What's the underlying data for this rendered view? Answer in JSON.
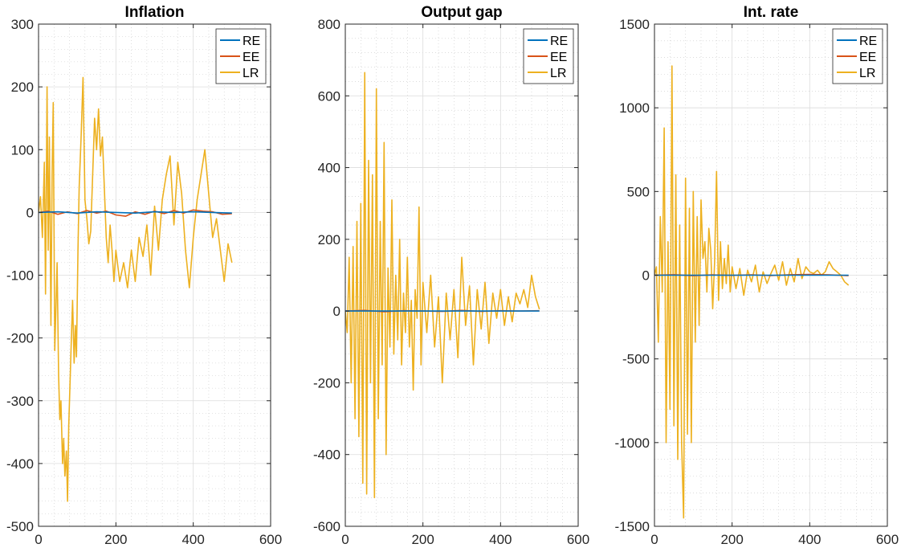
{
  "colors": {
    "RE": "#0072BD",
    "EE": "#D95319",
    "LR": "#EDB120",
    "grid_major": "#dcdcdc",
    "grid_minor": "#c8c8c8",
    "axes": "#262626"
  },
  "chart_data": [
    {
      "type": "line",
      "title": "Inflation",
      "xlim": [
        0,
        600
      ],
      "ylim": [
        -500,
        300
      ],
      "xticks": [
        0,
        200,
        400,
        600
      ],
      "yticks": [
        -500,
        -400,
        -300,
        -200,
        -100,
        0,
        100,
        200,
        300
      ],
      "grid": true,
      "minor_grid": true,
      "legend": "top-right",
      "series": [
        {
          "name": "RE",
          "color": "#0072BD",
          "x": [
            0,
            50,
            100,
            150,
            200,
            250,
            300,
            350,
            400,
            450,
            500
          ],
          "y": [
            0,
            1,
            -1,
            1,
            0,
            -1,
            1,
            0,
            1,
            0,
            -1
          ]
        },
        {
          "name": "EE",
          "color": "#D95319",
          "x": [
            0,
            25,
            50,
            75,
            100,
            125,
            150,
            175,
            200,
            225,
            250,
            275,
            300,
            325,
            350,
            375,
            400,
            425,
            450,
            475,
            500
          ],
          "y": [
            0,
            2,
            -3,
            1,
            -2,
            3,
            -1,
            2,
            -4,
            -6,
            1,
            -3,
            2,
            -2,
            3,
            -1,
            4,
            2,
            1,
            -3,
            -2
          ]
        },
        {
          "name": "LR",
          "color": "#EDB120",
          "x": [
            0,
            5,
            10,
            15,
            18,
            22,
            25,
            28,
            32,
            35,
            38,
            42,
            45,
            48,
            52,
            55,
            58,
            62,
            65,
            68,
            72,
            75,
            78,
            82,
            85,
            88,
            92,
            95,
            98,
            102,
            105,
            110,
            115,
            120,
            125,
            130,
            135,
            140,
            145,
            150,
            155,
            160,
            165,
            170,
            175,
            180,
            185,
            190,
            195,
            200,
            210,
            220,
            230,
            240,
            250,
            260,
            270,
            280,
            290,
            300,
            310,
            320,
            330,
            340,
            350,
            360,
            370,
            380,
            390,
            400,
            410,
            420,
            430,
            440,
            450,
            460,
            470,
            480,
            490,
            500
          ],
          "y": [
            0,
            25,
            -40,
            80,
            -130,
            200,
            -60,
            120,
            -180,
            60,
            175,
            -220,
            -150,
            -80,
            -260,
            -330,
            -300,
            -400,
            -360,
            -420,
            -380,
            -460,
            -340,
            -260,
            -200,
            -140,
            -240,
            -180,
            -230,
            -60,
            40,
            120,
            215,
            20,
            -10,
            -50,
            -30,
            60,
            150,
            100,
            165,
            90,
            120,
            40,
            -40,
            -80,
            -20,
            -60,
            -110,
            -60,
            -110,
            -80,
            -120,
            -60,
            -110,
            -40,
            -70,
            -20,
            -100,
            10,
            -60,
            20,
            60,
            90,
            -20,
            80,
            30,
            -60,
            -120,
            -40,
            20,
            60,
            100,
            30,
            -40,
            -10,
            -60,
            -110,
            -50,
            -80
          ]
        }
      ]
    },
    {
      "type": "line",
      "title": "Output gap",
      "xlim": [
        0,
        600
      ],
      "ylim": [
        -600,
        800
      ],
      "xticks": [
        0,
        200,
        400,
        600
      ],
      "yticks": [
        -600,
        -400,
        -200,
        0,
        200,
        400,
        600,
        800
      ],
      "grid": true,
      "minor_grid": true,
      "legend": "top-right",
      "series": [
        {
          "name": "RE",
          "color": "#0072BD",
          "x": [
            0,
            100,
            200,
            300,
            400,
            500
          ],
          "y": [
            0,
            0,
            0,
            0,
            0,
            0
          ]
        },
        {
          "name": "EE",
          "color": "#D95319",
          "x": [
            0,
            50,
            100,
            150,
            200,
            250,
            300,
            350,
            400,
            450,
            500
          ],
          "y": [
            0,
            2,
            -2,
            1,
            0,
            -1,
            2,
            -1,
            1,
            0,
            1
          ]
        },
        {
          "name": "LR",
          "color": "#EDB120",
          "x": [
            0,
            5,
            10,
            15,
            20,
            25,
            30,
            35,
            40,
            45,
            50,
            55,
            60,
            65,
            70,
            75,
            80,
            85,
            90,
            95,
            100,
            105,
            110,
            115,
            120,
            125,
            130,
            135,
            140,
            145,
            150,
            155,
            160,
            165,
            170,
            175,
            180,
            185,
            190,
            195,
            200,
            210,
            220,
            230,
            240,
            250,
            260,
            270,
            280,
            290,
            300,
            310,
            320,
            330,
            340,
            350,
            360,
            370,
            380,
            390,
            400,
            410,
            420,
            430,
            440,
            450,
            460,
            470,
            480,
            490,
            500
          ],
          "y": [
            0,
            -60,
            150,
            -200,
            180,
            -300,
            250,
            -350,
            300,
            -480,
            665,
            -510,
            420,
            -200,
            380,
            -520,
            620,
            -300,
            250,
            -150,
            470,
            -400,
            120,
            -100,
            310,
            -120,
            100,
            -80,
            200,
            -150,
            50,
            -60,
            150,
            -100,
            30,
            -220,
            60,
            -20,
            290,
            -150,
            80,
            -60,
            100,
            -100,
            40,
            -200,
            50,
            -80,
            60,
            -130,
            150,
            -40,
            70,
            -150,
            60,
            -50,
            80,
            -90,
            50,
            -20,
            60,
            -40,
            40,
            -30,
            50,
            20,
            60,
            10,
            100,
            40,
            5
          ]
        }
      ]
    },
    {
      "type": "line",
      "title": "Int. rate",
      "xlim": [
        0,
        600
      ],
      "ylim": [
        -1500,
        1500
      ],
      "xticks": [
        0,
        200,
        400,
        600
      ],
      "yticks": [
        -1500,
        -1000,
        -500,
        0,
        500,
        1000,
        1500
      ],
      "grid": true,
      "minor_grid": true,
      "legend": "top-right",
      "series": [
        {
          "name": "RE",
          "color": "#0072BD",
          "x": [
            0,
            100,
            200,
            300,
            400,
            500
          ],
          "y": [
            0,
            0,
            0,
            0,
            0,
            0
          ]
        },
        {
          "name": "EE",
          "color": "#D95319",
          "x": [
            0,
            50,
            100,
            150,
            200,
            250,
            300,
            350,
            400,
            450,
            500
          ],
          "y": [
            0,
            3,
            -3,
            2,
            -1,
            2,
            -2,
            3,
            5,
            2,
            -3
          ]
        },
        {
          "name": "LR",
          "color": "#EDB120",
          "x": [
            0,
            5,
            10,
            15,
            20,
            25,
            30,
            35,
            40,
            45,
            50,
            55,
            60,
            65,
            70,
            75,
            80,
            85,
            90,
            95,
            100,
            105,
            110,
            115,
            120,
            125,
            130,
            135,
            140,
            145,
            150,
            155,
            160,
            165,
            170,
            175,
            180,
            185,
            190,
            195,
            200,
            210,
            220,
            230,
            240,
            250,
            260,
            270,
            280,
            290,
            300,
            310,
            320,
            330,
            340,
            350,
            360,
            370,
            380,
            390,
            400,
            410,
            420,
            430,
            440,
            450,
            460,
            470,
            480,
            490,
            500
          ],
          "y": [
            0,
            50,
            -400,
            350,
            -100,
            880,
            -1000,
            200,
            -800,
            1250,
            -900,
            600,
            -1100,
            300,
            -1000,
            -1450,
            580,
            -950,
            400,
            -1000,
            500,
            -400,
            350,
            -300,
            450,
            100,
            200,
            -100,
            280,
            150,
            -200,
            80,
            620,
            -150,
            200,
            -80,
            100,
            -50,
            180,
            -100,
            50,
            -80,
            40,
            -120,
            30,
            -40,
            60,
            -100,
            20,
            -50,
            10,
            60,
            -30,
            80,
            -60,
            40,
            -40,
            100,
            -20,
            50,
            20,
            10,
            30,
            0,
            20,
            80,
            40,
            20,
            0,
            -40,
            -60
          ]
        }
      ]
    }
  ]
}
